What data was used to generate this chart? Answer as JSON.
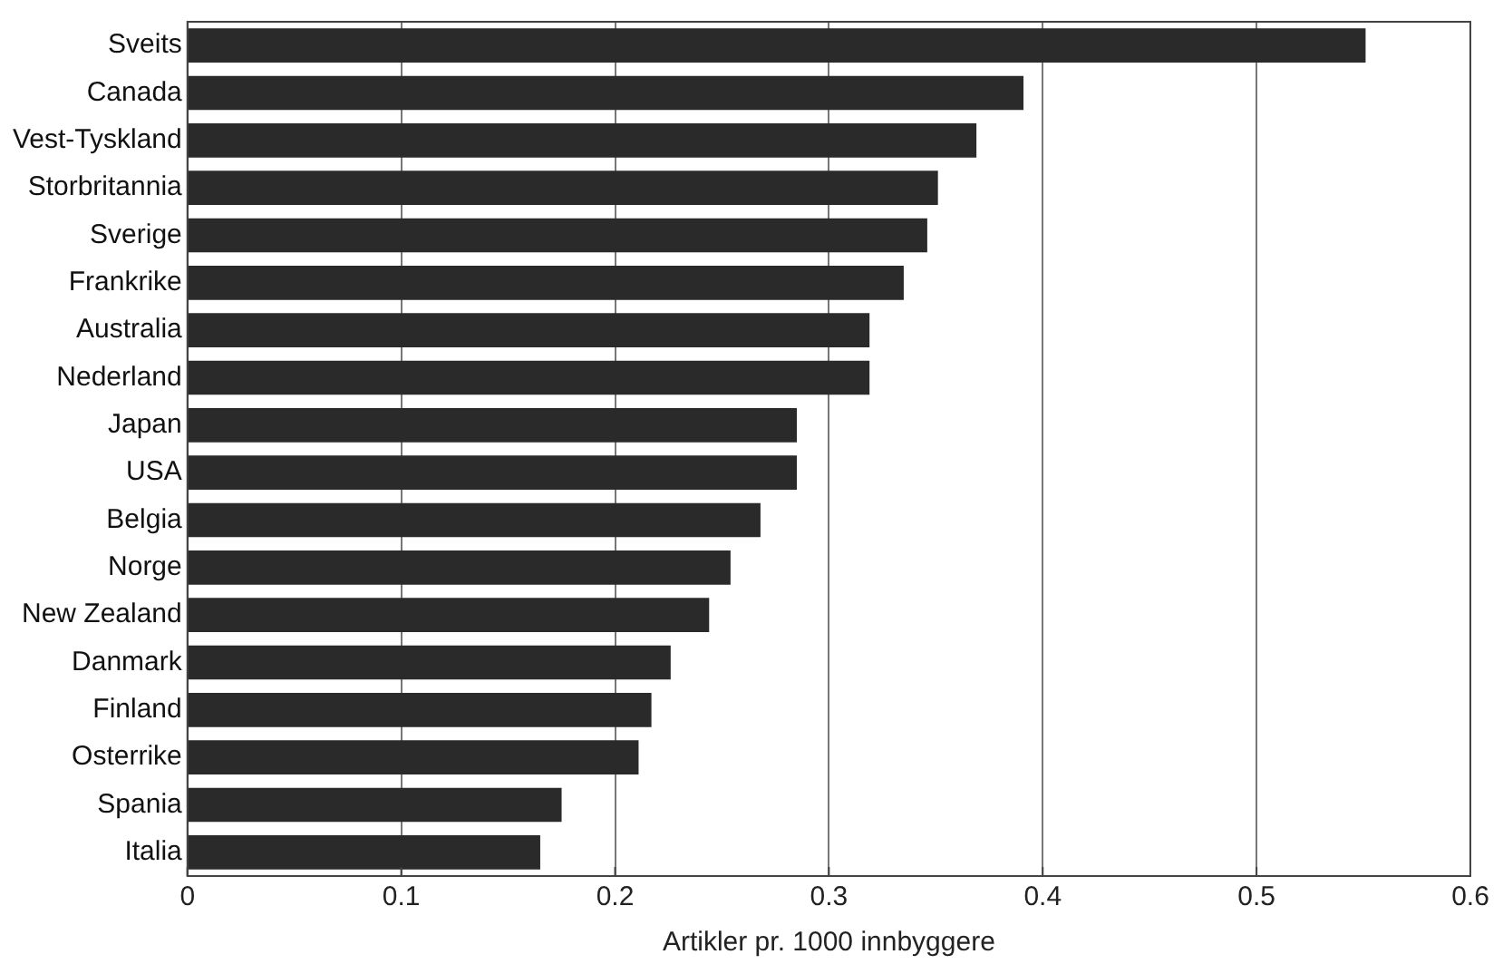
{
  "chart_data": {
    "type": "bar",
    "orientation": "horizontal",
    "xlabel": "Artikler pr. 1000 innbyggere",
    "categories": [
      "Sveits",
      "Canada",
      "Vest-Tyskland",
      "Storbritannia",
      "Sverige",
      "Frankrike",
      "Australia",
      "Nederland",
      "Japan",
      "USA",
      "Belgia",
      "Norge",
      "New Zealand",
      "Danmark",
      "Finland",
      "Osterrike",
      "Spania",
      "Italia"
    ],
    "values": [
      0.551,
      0.391,
      0.369,
      0.351,
      0.346,
      0.335,
      0.319,
      0.319,
      0.285,
      0.285,
      0.268,
      0.254,
      0.244,
      0.226,
      0.217,
      0.211,
      0.175,
      0.165
    ],
    "color": "#2a2a2a",
    "xlim": [
      0,
      0.6
    ],
    "xticks": [
      0,
      0.1,
      0.2,
      0.3,
      0.4,
      0.5,
      0.6
    ],
    "grid": "x",
    "legend": false
  }
}
